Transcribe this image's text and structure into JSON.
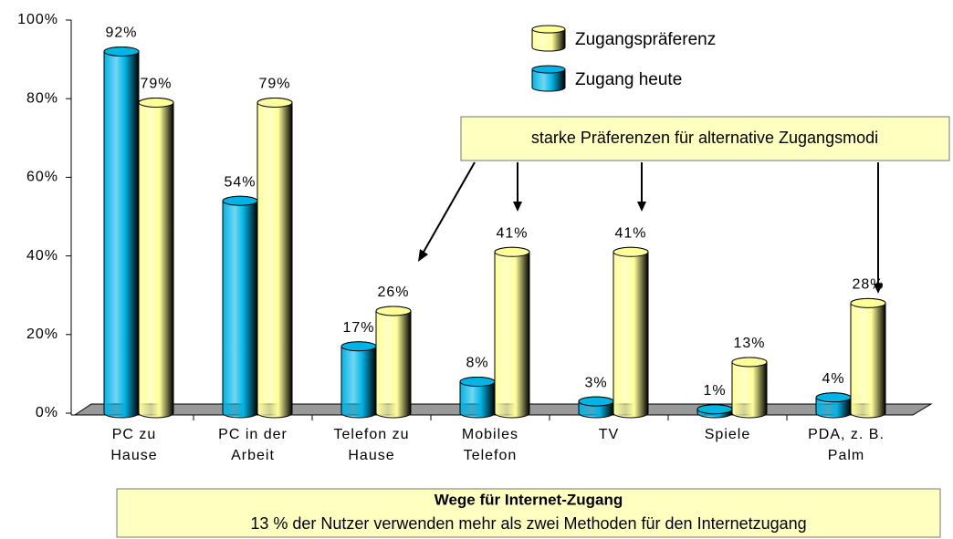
{
  "chart_data": {
    "type": "bar",
    "title": "Wege für Internet-Zugang",
    "subtitle": "13 % der Nutzer verwenden mehr als zwei Methoden für den Internetzugang",
    "annotation": "starke Präferenzen für alternative Zugangsmodi",
    "categories": [
      [
        "PC zu",
        "Hause"
      ],
      [
        "PC in der",
        "Arbeit"
      ],
      [
        "Telefon zu",
        "Hause"
      ],
      [
        "Mobiles",
        "Telefon"
      ],
      [
        "TV"
      ],
      [
        "Spiele"
      ],
      [
        "PDA, z. B.",
        "Palm"
      ]
    ],
    "series": [
      {
        "name": "Zugang heute",
        "color": "#00b4e6",
        "values": [
          92,
          54,
          17,
          8,
          3,
          1,
          4
        ],
        "value_labels": [
          "92%",
          "54%",
          "17%",
          "8%",
          "3%",
          "1%",
          "4%"
        ]
      },
      {
        "name": "Zugangspräferenz",
        "color": "#ffff99",
        "values": [
          79,
          79,
          26,
          41,
          41,
          13,
          28
        ],
        "value_labels": [
          "79%",
          "79%",
          "26%",
          "41%",
          "41%",
          "13%",
          "28%"
        ]
      }
    ],
    "ylim": [
      0,
      100
    ],
    "yticks": [
      {
        "value": 0,
        "label": "0%"
      },
      {
        "value": 20,
        "label": "20%"
      },
      {
        "value": 40,
        "label": "40%"
      },
      {
        "value": 60,
        "label": "60%"
      },
      {
        "value": 80,
        "label": "80%"
      },
      {
        "value": 100,
        "label": "100%"
      }
    ],
    "legend": "top-right"
  }
}
